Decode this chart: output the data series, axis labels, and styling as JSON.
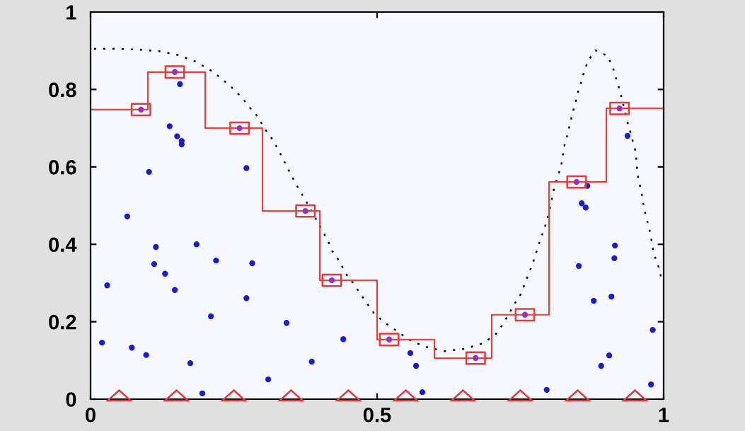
{
  "chart_data": {
    "type": "scatter",
    "xlim": [
      0,
      1
    ],
    "ylim": [
      0,
      1
    ],
    "xticks": [
      0,
      0.5,
      1
    ],
    "yticks": [
      0,
      0.2,
      0.4,
      0.6,
      0.8,
      1
    ],
    "series": [
      {
        "type": "line",
        "color": "#000000",
        "line_style": "dotted",
        "marker": "none",
        "x": [
          0.006,
          0.046,
          0.081,
          0.119,
          0.153,
          0.183,
          0.207,
          0.227,
          0.246,
          0.264,
          0.278,
          0.293,
          0.302,
          0.315,
          0.326,
          0.335,
          0.344,
          0.354,
          0.364,
          0.375,
          0.404,
          0.414,
          0.422,
          0.435,
          0.444,
          0.457,
          0.469,
          0.481,
          0.494,
          0.512,
          0.536,
          0.558,
          0.585,
          0.617,
          0.653,
          0.684,
          0.706,
          0.719,
          0.741,
          0.752,
          0.758,
          0.765,
          0.772,
          0.778,
          0.784,
          0.791,
          0.797,
          0.809,
          0.815,
          0.821,
          0.824,
          0.827,
          0.832,
          0.837,
          0.841,
          0.846,
          0.851,
          0.857,
          0.862,
          0.869,
          0.881,
          0.902,
          0.911,
          0.916,
          0.922,
          0.927,
          0.936,
          0.941,
          0.946,
          0.951,
          0.953,
          0.954,
          0.958,
          0.962,
          0.965,
          0.969,
          0.974,
          0.978,
          0.981,
          0.986,
          0.993,
          0.996
        ],
        "values": [
          0.905,
          0.905,
          0.903,
          0.899,
          0.889,
          0.872,
          0.852,
          0.83,
          0.806,
          0.779,
          0.753,
          0.728,
          0.702,
          0.676,
          0.649,
          0.623,
          0.596,
          0.568,
          0.541,
          0.514,
          0.437,
          0.41,
          0.382,
          0.355,
          0.327,
          0.302,
          0.276,
          0.25,
          0.223,
          0.199,
          0.174,
          0.152,
          0.135,
          0.124,
          0.13,
          0.144,
          0.166,
          0.192,
          0.249,
          0.274,
          0.3,
          0.325,
          0.353,
          0.38,
          0.408,
          0.437,
          0.464,
          0.545,
          0.574,
          0.601,
          0.629,
          0.656,
          0.682,
          0.713,
          0.739,
          0.764,
          0.795,
          0.823,
          0.85,
          0.876,
          0.901,
          0.887,
          0.859,
          0.834,
          0.804,
          0.777,
          0.72,
          0.695,
          0.667,
          0.64,
          0.612,
          0.583,
          0.556,
          0.528,
          0.501,
          0.473,
          0.446,
          0.419,
          0.389,
          0.362,
          0.335,
          0.309
        ]
      },
      {
        "type": "step",
        "color": "#e8413c",
        "line_style": "solid",
        "marker": "none",
        "x": [
          0,
          0.1,
          0.2,
          0.3,
          0.4,
          0.5,
          0.6,
          0.7,
          0.8,
          0.9,
          1
        ],
        "values": [
          0.748,
          0.845,
          0.7,
          0.486,
          0.307,
          0.154,
          0.106,
          0.218,
          0.561,
          0.751,
          0.751
        ]
      },
      {
        "color": "#1c1ccf",
        "marker": "circle",
        "x": [
          0.02,
          0.029,
          0.064,
          0.072,
          0.097,
          0.102,
          0.111,
          0.114,
          0.13,
          0.138,
          0.147,
          0.151,
          0.156,
          0.159,
          0.159,
          0.174,
          0.185,
          0.195,
          0.21,
          0.219,
          0.272,
          0.272,
          0.282,
          0.31,
          0.342,
          0.386,
          0.441,
          0.558,
          0.568,
          0.579,
          0.796,
          0.852,
          0.857,
          0.864,
          0.867,
          0.878,
          0.891,
          0.905,
          0.909,
          0.914,
          0.915,
          0.937,
          0.978,
          0.981
        ],
        "values": [
          0.146,
          0.294,
          0.472,
          0.133,
          0.114,
          0.587,
          0.349,
          0.393,
          0.324,
          0.705,
          0.282,
          0.679,
          0.814,
          0.667,
          0.658,
          0.093,
          0.4,
          0.015,
          0.214,
          0.358,
          0.597,
          0.261,
          0.351,
          0.051,
          0.197,
          0.097,
          0.155,
          0.119,
          0.086,
          0.018,
          0.024,
          0.344,
          0.506,
          0.495,
          0.551,
          0.254,
          0.086,
          0.113,
          0.265,
          0.364,
          0.397,
          0.68,
          0.038,
          0.179
        ]
      },
      {
        "color": "#e03c3c",
        "marker": "square",
        "x": [
          0.088,
          0.147,
          0.26,
          0.375,
          0.421,
          0.521,
          0.672,
          0.758,
          0.848,
          0.923
        ],
        "values": [
          0.748,
          0.845,
          0.7,
          0.486,
          0.307,
          0.154,
          0.106,
          0.218,
          0.561,
          0.751
        ]
      },
      {
        "color": "#9b30c0",
        "marker": "circle",
        "x": [
          0.088,
          0.147,
          0.26,
          0.375,
          0.421,
          0.521,
          0.672,
          0.758,
          0.848,
          0.923
        ],
        "values": [
          0.748,
          0.845,
          0.7,
          0.486,
          0.307,
          0.154,
          0.106,
          0.218,
          0.561,
          0.751
        ]
      },
      {
        "color": "#e03c3c",
        "marker": "triangle",
        "x": [
          0.05,
          0.15,
          0.25,
          0.35,
          0.45,
          0.55,
          0.65,
          0.75,
          0.85,
          0.95
        ],
        "values": [
          0.01,
          0.01,
          0.01,
          0.01,
          0.01,
          0.01,
          0.01,
          0.01,
          0.01,
          0.01
        ]
      }
    ]
  }
}
